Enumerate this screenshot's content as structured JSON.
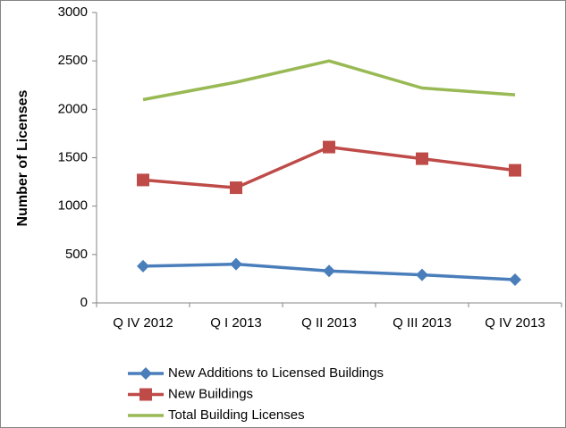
{
  "chart_data": {
    "type": "line",
    "y_label": "Number of Licenses",
    "categories": [
      "Q IV 2012",
      "Q I 2013",
      "Q II 2013",
      "Q III 2013",
      "Q IV 2013"
    ],
    "series": [
      {
        "name": "New Additions to Licensed Buildings",
        "color": "#4a7ebb",
        "marker": "diamond",
        "values": [
          380,
          400,
          330,
          290,
          240
        ]
      },
      {
        "name": "New Buildings",
        "color": "#be4b48",
        "marker": "square",
        "values": [
          1270,
          1190,
          1610,
          1490,
          1370
        ]
      },
      {
        "name": "Total Building Licenses",
        "color": "#98b954",
        "marker": "none",
        "values": [
          2100,
          2280,
          2500,
          2220,
          2150
        ]
      }
    ],
    "ylim": [
      0,
      3000
    ],
    "yticks": [
      0,
      500,
      1000,
      1500,
      2000,
      2500,
      3000
    ],
    "grid": false,
    "legend": "bottom"
  }
}
